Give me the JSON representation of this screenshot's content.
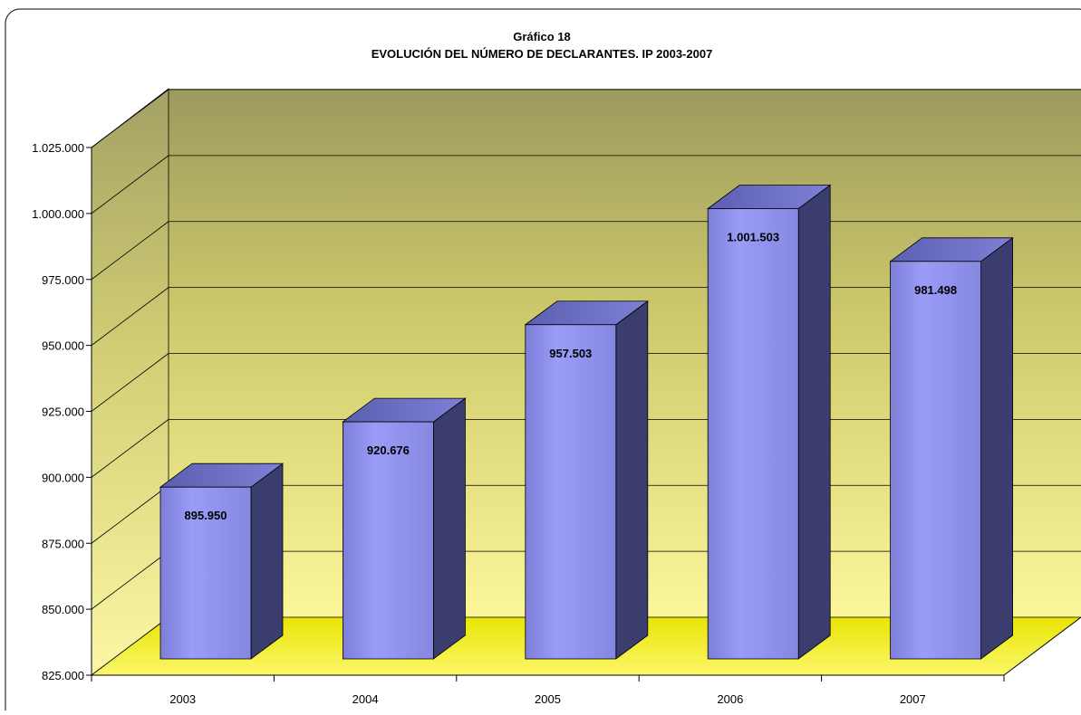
{
  "chart_data": {
    "type": "bar",
    "title": "Gráfico 18",
    "subtitle": "EVOLUCIÓN DEL NÚMERO DE DECLARANTES. IP 2003-2007",
    "categories": [
      "2003",
      "2004",
      "2005",
      "2006",
      "2007"
    ],
    "values": [
      895950,
      920676,
      957503,
      1001503,
      981498
    ],
    "data_labels": [
      "895.950",
      "920.676",
      "957.503",
      "1.001.503",
      "981.498"
    ],
    "ylim": [
      825000,
      1025000
    ],
    "yticks": [
      825000,
      850000,
      875000,
      900000,
      925000,
      950000,
      975000,
      1000000,
      1025000
    ],
    "ytick_labels": [
      "825.000",
      "850.000",
      "875.000",
      "900.000",
      "925.000",
      "950.000",
      "975.000",
      "1.000.000",
      "1.025.000"
    ],
    "grid": true,
    "style": "3d-column",
    "colors": {
      "bar_front": "#9a9cf8",
      "bar_side": "#3b3d6e",
      "bar_top": "#6d70c8",
      "wall_top": "#9c9a5e",
      "wall_bottom": "#fbf79a",
      "floor": "#f2ee12"
    }
  }
}
